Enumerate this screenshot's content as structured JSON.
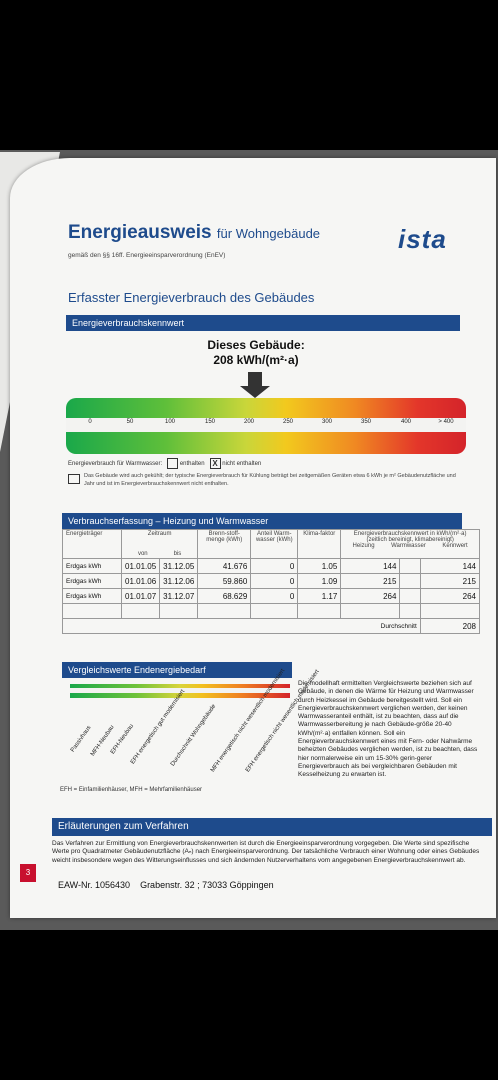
{
  "header": {
    "title": "Energieausweis",
    "title_suffix": "für Wohngebäude",
    "subtitle": "gemäß den §§ 16ff. Energieeinsparverordnung (EnEV)",
    "logo": "ista"
  },
  "section_title": "Erfasster Energieverbrauch des Gebäudes",
  "kennwert": {
    "bar_label": "Energieverbrauchskennwert",
    "dieses_label": "Dieses Gebäude:",
    "value": "208 kWh/(m²·a)",
    "value_numeric": 208,
    "scale_ticks": [
      "0",
      "50",
      "100",
      "150",
      "200",
      "250",
      "300",
      "350",
      "400",
      "> 400"
    ],
    "warmwasser_label": "Energieverbrauch für Warmwasser:",
    "opt_enthalten": "enthalten",
    "opt_nicht_enthalten": "nicht enthalten",
    "checked_mark": "X",
    "kuehlung_note": "Das Gebäude wird auch gekühlt; der typische Energieverbrauch für Kühlung beträgt bei zeitgemäßen Geräten etwa 6 kWh je m² Gebäudenutzfläche und Jahr und ist im Energieverbrauchskennwert nicht enthalten."
  },
  "verbrauch": {
    "bar_label": "Verbrauchserfassung – Heizung und Warmwasser",
    "headers": {
      "traeger": "Energieträger",
      "zeitraum": "Zeitraum",
      "von": "von",
      "bis": "bis",
      "brennstoff": "Brenn-stoff-menge (kWh)",
      "anteil": "Anteil Warm-wasser (kWh)",
      "klima": "Klima-faktor",
      "ekw": "Energieverbrauchskennwert in kWh/(m²·a) (zeitlich bereinigt, klimabereinigt)",
      "heizung": "Heizung",
      "warmwasser": "Warmwasser",
      "kennwert": "Kennwert"
    },
    "rows": [
      {
        "traeger": "Erdgas kWh",
        "von": "01.01.05",
        "bis": "31.12.05",
        "menge": "41.676",
        "anteil": "0",
        "klima": "1.05",
        "heizung": "144",
        "warmwasser": "",
        "kennwert": "144"
      },
      {
        "traeger": "Erdgas kWh",
        "von": "01.01.06",
        "bis": "31.12.06",
        "menge": "59.860",
        "anteil": "0",
        "klima": "1.09",
        "heizung": "215",
        "warmwasser": "",
        "kennwert": "215"
      },
      {
        "traeger": "Erdgas kWh",
        "von": "01.01.07",
        "bis": "31.12.07",
        "menge": "68.629",
        "anteil": "0",
        "klima": "1.17",
        "heizung": "264",
        "warmwasser": "",
        "kennwert": "264"
      }
    ],
    "durchschnitt_label": "Durchschnitt",
    "durchschnitt_value": "208"
  },
  "vergleich": {
    "bar_label": "Vergleichswerte Endenergiebedarf",
    "scale_ticks": [
      "0",
      "50",
      "100",
      "150",
      "200",
      "250",
      "300",
      "350",
      "400",
      "> 400"
    ],
    "labels": [
      "Passivhaus",
      "MFH-Neubau",
      "EFH-Neubau",
      "EFH energetisch gut modernisiert",
      "Durchschnitt Wohngebäude",
      "MFH energetisch nicht wesentlich modernisiert",
      "EFH energetisch nicht wesentlich modernisiert"
    ],
    "legend": "EFH = Einfamilienhäuser, MFH = Mehrfamilienhäuser",
    "note": "Die modellhaft ermittelten Vergleichswerte beziehen sich auf Gebäude, in denen die Wärme für Heizung und Warmwasser durch Heizkessel im Gebäude bereitgestellt wird. Soll ein Energieverbrauchskennwert verglichen werden, der keinen Warmwasseranteil enthält, ist zu beachten, dass auf die Warmwasserbereitung je nach Gebäude-größe 20-40 kWh/(m²·a) entfallen können. Soll ein Energieverbrauchskennwert eines mit Fern- oder Nahwärme beheizten Gebäudes verglichen werden, ist zu beachten, dass hier normalerweise ein um 15-30% gerin-gerer Energieverbrauch als bei vergleichbaren Gebäuden mit Kesselheizung zu erwarten ist."
  },
  "verfahren": {
    "bar_label": "Erläuterungen zum Verfahren",
    "text": "Das Verfahren zur Ermittlung von Energieverbrauchskennwerten ist durch die Energieeinsparverordnung vorgegeben. Die Werte sind spezifische Werte pro Quadratmeter Gebäudenutzfläche (Aₙ) nach Energieeinsparverordnung. Der tatsächliche Verbrauch einer Wohnung oder eines Gebäudes weicht insbesondere wegen des Witterungseinflusses und sich ändernden Nutzerverhaltens vom angegebenen Energieverbrauchskennwert ab."
  },
  "footer": {
    "page": "3",
    "eaw": "EAW-Nr. 1056430",
    "address": "Grabenstr. 32 ; 73033 Göppingen"
  },
  "colors": {
    "brand_blue": "#1e4b8c",
    "accent_red": "#c8102e"
  }
}
